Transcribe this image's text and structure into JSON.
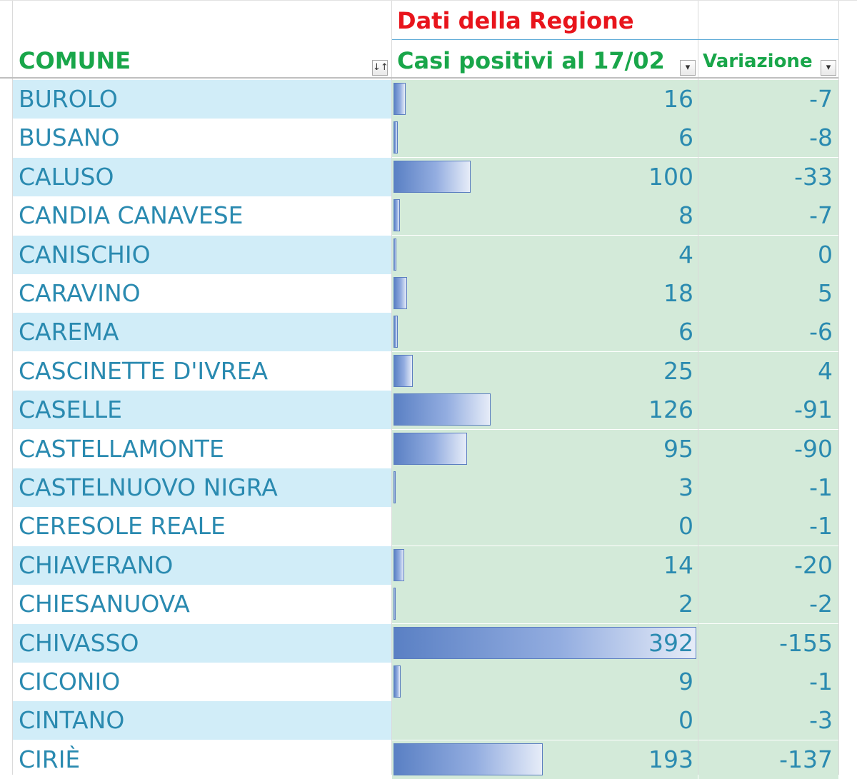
{
  "sheet": {
    "group_header": "Dati della Regione",
    "columns": {
      "comune": "COMUNE",
      "casi": "Casi positivi al 17/02",
      "variazione": "Variazione"
    },
    "filters": {
      "comune_icon": "sort-filter-icon",
      "casi_icon": "dropdown-filter-icon",
      "variazione_icon": "dropdown-filter-icon"
    },
    "data_bar_max": 392,
    "rows": [
      {
        "comune": "BUROLO",
        "casi": 16,
        "variazione": "-7"
      },
      {
        "comune": "BUSANO",
        "casi": 6,
        "variazione": "-8"
      },
      {
        "comune": "CALUSO",
        "casi": 100,
        "variazione": "-33"
      },
      {
        "comune": "CANDIA CANAVESE",
        "casi": 8,
        "variazione": "-7"
      },
      {
        "comune": "CANISCHIO",
        "casi": 4,
        "variazione": "0"
      },
      {
        "comune": "CARAVINO",
        "casi": 18,
        "variazione": "5"
      },
      {
        "comune": "CAREMA",
        "casi": 6,
        "variazione": "-6"
      },
      {
        "comune": "CASCINETTE D'IVREA",
        "casi": 25,
        "variazione": "4"
      },
      {
        "comune": "CASELLE",
        "casi": 126,
        "variazione": "-91"
      },
      {
        "comune": "CASTELLAMONTE",
        "casi": 95,
        "variazione": "-90"
      },
      {
        "comune": "CASTELNUOVO NIGRA",
        "casi": 3,
        "variazione": "-1"
      },
      {
        "comune": "CERESOLE REALE",
        "casi": 0,
        "variazione": "-1"
      },
      {
        "comune": "CHIAVERANO",
        "casi": 14,
        "variazione": "-20"
      },
      {
        "comune": "CHIESANUOVA",
        "casi": 2,
        "variazione": "-2"
      },
      {
        "comune": "CHIVASSO",
        "casi": 392,
        "variazione": "-155"
      },
      {
        "comune": "CICONIO",
        "casi": 9,
        "variazione": "-1"
      },
      {
        "comune": "CINTANO",
        "casi": 0,
        "variazione": "-3"
      },
      {
        "comune": "CIRIÈ",
        "casi": 193,
        "variazione": "-137"
      }
    ],
    "colors": {
      "group_header": "#e8141b",
      "column_header": "#19a64a",
      "text": "#2a8ab0",
      "band": "#d1edf8",
      "value_fill": "#d3ead9",
      "bar": "#5a80c4"
    }
  }
}
